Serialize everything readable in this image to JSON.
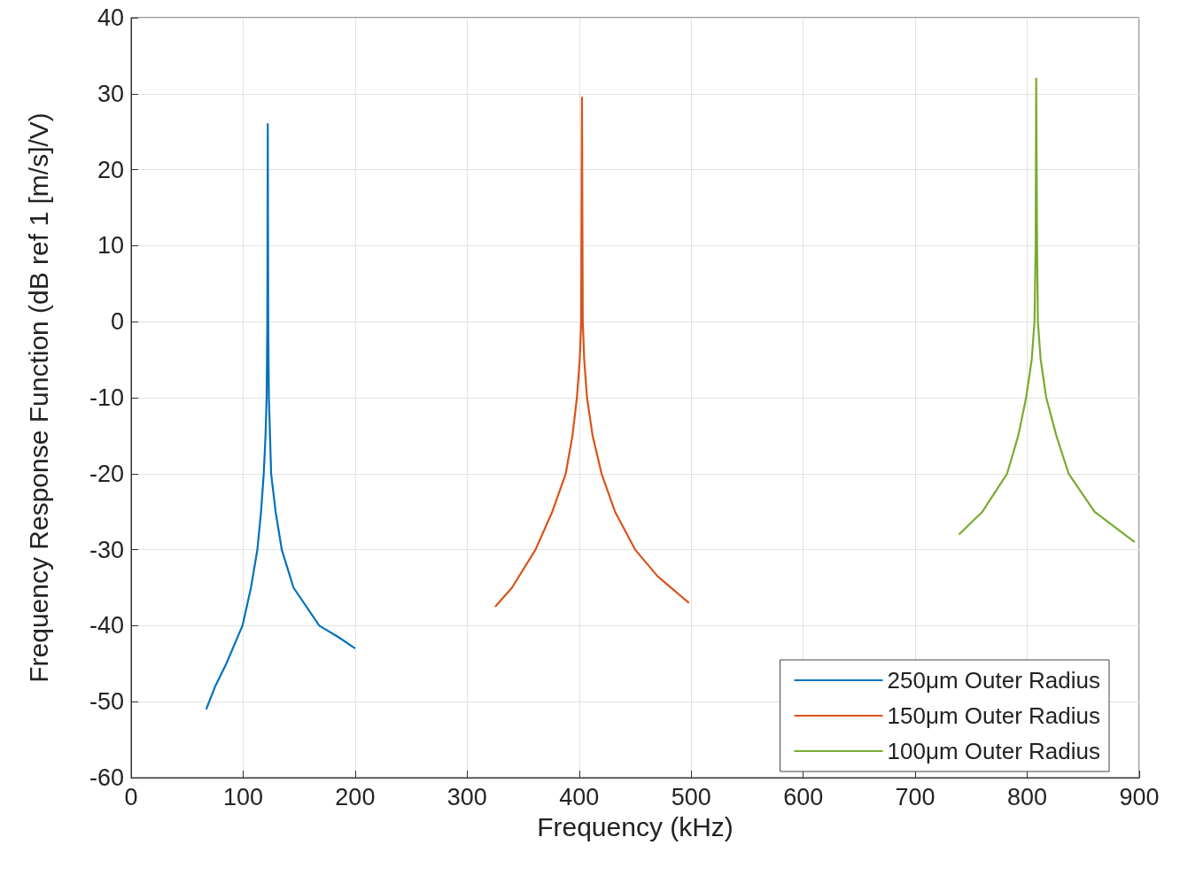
{
  "chart_data": {
    "type": "line",
    "xlabel": "Frequency (kHz)",
    "ylabel": "Frequency Response Function (dB ref 1 [m/s]/V)",
    "xlim": [
      0,
      900
    ],
    "xticks": [
      0,
      100,
      200,
      300,
      400,
      500,
      600,
      700,
      800,
      900
    ],
    "ylim": [
      -60,
      40
    ],
    "yticks": [
      -60,
      -50,
      -40,
      -30,
      -20,
      -10,
      0,
      10,
      20,
      30,
      40
    ],
    "grid": true,
    "legend": "bottom right",
    "marker": "none",
    "line_style": "solid",
    "series": [
      {
        "name": "250μm Outer Radius",
        "color": "#0072bd",
        "x": [
          67,
          75,
          85,
          99.4,
          107,
          112.7,
          116,
          118.4,
          120,
          121,
          121.6,
          122,
          122.4,
          123,
          124,
          125,
          129,
          134.5,
          145,
          168,
          185,
          200
        ],
        "values": [
          -51,
          -48,
          -45,
          -40,
          -35,
          -30,
          -25,
          -20,
          -15,
          -10,
          0,
          26,
          0,
          -10,
          -15,
          -20,
          -25,
          -30,
          -35,
          -40,
          -41.5,
          -43
        ]
      },
      {
        "name": "150μm Outer Radius",
        "color": "#d95319",
        "x": [
          325,
          340,
          361,
          376,
          388,
          394,
          398,
          400.5,
          401.8,
          402.5,
          403.2,
          404.5,
          407,
          412,
          420,
          432,
          450,
          470,
          498
        ],
        "values": [
          -37.5,
          -35,
          -30,
          -25,
          -20,
          -15,
          -10,
          -5,
          0,
          29.5,
          0,
          -5,
          -10,
          -15,
          -20,
          -25,
          -30,
          -33.5,
          -37
        ]
      },
      {
        "name": "100μm Outer Radius",
        "color": "#77ac30",
        "x": [
          739,
          760,
          782,
          792,
          799,
          804,
          806.5,
          807.5,
          808,
          808.8,
          809.5,
          812,
          817,
          826,
          837,
          860,
          896
        ],
        "values": [
          -28,
          -25,
          -20,
          -15,
          -10,
          -5,
          0,
          10,
          32,
          10,
          0,
          -5,
          -10,
          -15,
          -20,
          -25,
          -29
        ]
      }
    ]
  }
}
